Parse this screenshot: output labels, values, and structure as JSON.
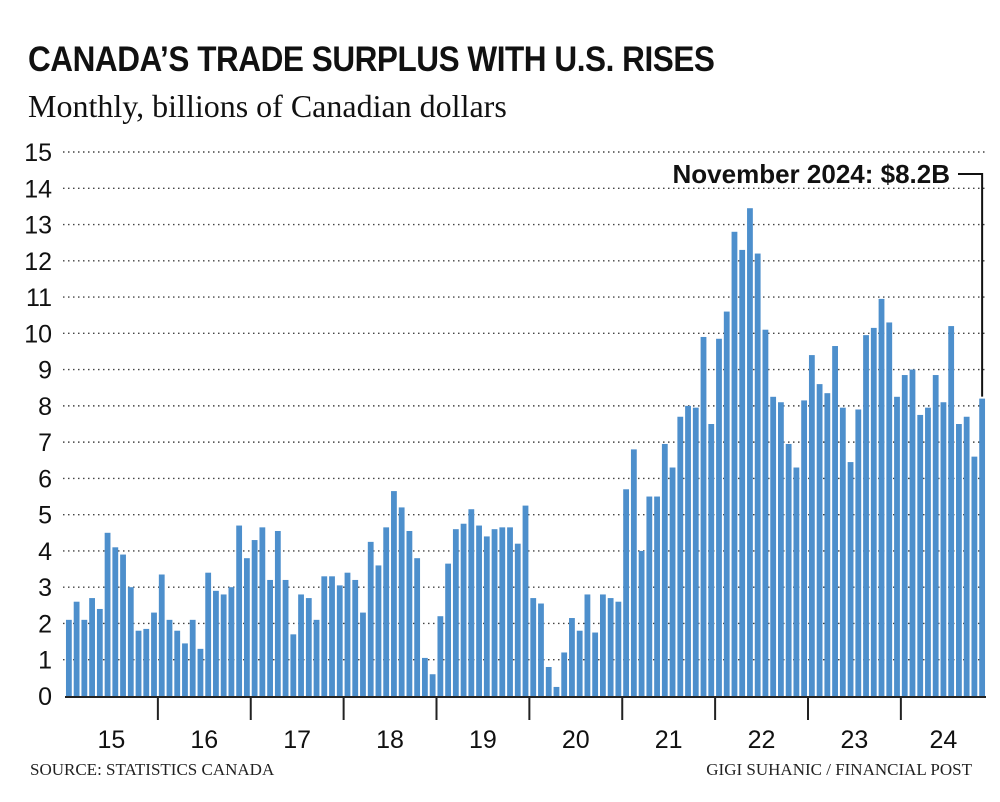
{
  "title": "CANADA’S TRADE SURPLUS WITH U.S. RISES",
  "subtitle": "Monthly, billions of Canadian dollars",
  "annotation": "November 2024: $8.2B",
  "source": "SOURCE: STATISTICS CANADA",
  "credit": "GIGI SUHANIC / FINANCIAL POST",
  "colors": {
    "bar": "#4d8fcc",
    "text": "#111111",
    "grid": "#444444"
  },
  "chart_data": {
    "type": "bar",
    "title": "CANADA’S TRADE SURPLUS WITH U.S. RISES",
    "subtitle": "Monthly, billions of Canadian dollars",
    "ylabel": "",
    "xlabel": "",
    "ylim": [
      0,
      15
    ],
    "yticks": [
      0,
      1,
      2,
      3,
      4,
      5,
      6,
      7,
      8,
      9,
      10,
      11,
      12,
      13,
      14,
      15
    ],
    "grid": true,
    "x_start": "2015-01",
    "x_end": "2024-11",
    "year_labels": [
      "15",
      "16",
      "17",
      "18",
      "19",
      "20",
      "21",
      "22",
      "23",
      "24"
    ],
    "values": [
      2.1,
      2.6,
      2.1,
      2.7,
      2.4,
      4.5,
      4.1,
      3.9,
      3.0,
      1.8,
      1.85,
      2.3,
      3.35,
      2.1,
      1.8,
      1.45,
      2.1,
      1.3,
      3.4,
      2.9,
      2.8,
      3.0,
      4.7,
      3.8,
      4.3,
      4.65,
      3.2,
      4.55,
      3.2,
      1.7,
      2.8,
      2.7,
      2.1,
      3.3,
      3.3,
      3.05,
      3.4,
      3.2,
      2.3,
      4.25,
      3.6,
      4.65,
      5.65,
      5.2,
      4.55,
      3.8,
      1.05,
      0.6,
      2.2,
      3.65,
      4.6,
      4.75,
      5.15,
      4.7,
      4.4,
      4.6,
      4.65,
      4.65,
      4.2,
      5.25,
      2.7,
      2.55,
      0.8,
      0.25,
      1.2,
      2.15,
      1.8,
      2.8,
      1.75,
      2.8,
      2.7,
      2.6,
      5.7,
      6.8,
      4.0,
      5.5,
      5.5,
      6.95,
      6.3,
      7.7,
      8.0,
      7.95,
      9.9,
      7.5,
      9.85,
      10.6,
      12.8,
      12.3,
      13.45,
      12.2,
      10.1,
      8.25,
      8.1,
      6.95,
      6.3,
      8.15,
      9.4,
      8.6,
      8.35,
      9.65,
      7.95,
      6.45,
      7.9,
      9.95,
      10.15,
      10.95,
      10.3,
      8.25,
      8.85,
      9.0,
      7.75,
      7.95,
      8.85,
      8.1,
      10.2,
      7.5,
      7.7,
      6.6,
      8.2
    ]
  }
}
